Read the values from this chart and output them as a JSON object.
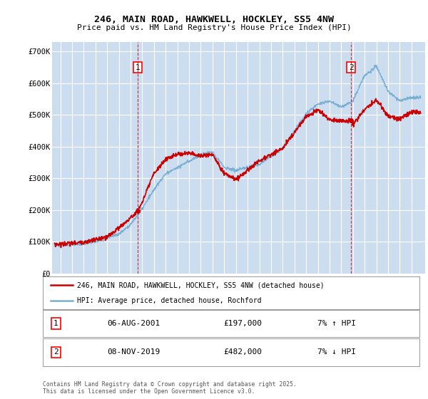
{
  "title_line1": "246, MAIN ROAD, HAWKWELL, HOCKLEY, SS5 4NW",
  "title_line2": "Price paid vs. HM Land Registry's House Price Index (HPI)",
  "background_color": "#ccddf0",
  "grid_color": "#ffffff",
  "red_color": "#cc0000",
  "blue_color": "#7aafd4",
  "ylim": [
    0,
    730000
  ],
  "yticks": [
    0,
    100000,
    200000,
    300000,
    400000,
    500000,
    600000,
    700000
  ],
  "ytick_labels": [
    "£0",
    "£100K",
    "£200K",
    "£300K",
    "£400K",
    "£500K",
    "£600K",
    "£700K"
  ],
  "legend_label_red": "246, MAIN ROAD, HAWKWELL, HOCKLEY, SS5 4NW (detached house)",
  "legend_label_blue": "HPI: Average price, detached house, Rochford",
  "sale1_date_label": "06-AUG-2001",
  "sale1_price_label": "£197,000",
  "sale1_hpi_label": "7% ↑ HPI",
  "sale2_date_label": "08-NOV-2019",
  "sale2_price_label": "£482,000",
  "sale2_hpi_label": "7% ↓ HPI",
  "footer": "Contains HM Land Registry data © Crown copyright and database right 2025.\nThis data is licensed under the Open Government Licence v3.0.",
  "sale1_x": 2001.6,
  "sale1_y": 197000,
  "sale2_x": 2019.85,
  "sale2_y": 482000,
  "xlim_min": 1994.3,
  "xlim_max": 2026.2
}
